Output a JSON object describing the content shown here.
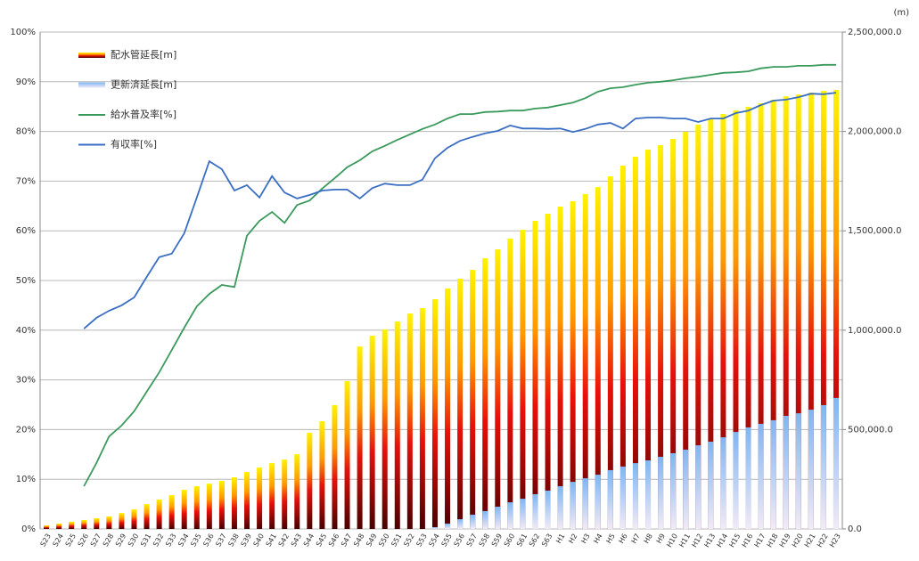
{
  "chart_data": {
    "type": "bar",
    "unit_label": "(m)",
    "categories": [
      "S23",
      "S24",
      "S25",
      "S26",
      "S27",
      "S28",
      "S29",
      "S30",
      "S31",
      "S32",
      "S33",
      "S34",
      "S35",
      "S36",
      "S37",
      "S38",
      "S39",
      "S40",
      "S41",
      "S42",
      "S43",
      "S44",
      "S45",
      "S46",
      "S47",
      "S48",
      "S49",
      "S50",
      "S51",
      "S52",
      "S53",
      "S54",
      "S55",
      "S56",
      "S57",
      "S58",
      "S59",
      "S60",
      "S61",
      "S62",
      "S63",
      "H1",
      "H2",
      "H3",
      "H4",
      "H5",
      "H6",
      "H7",
      "H8",
      "H9",
      "H10",
      "H11",
      "H12",
      "H13",
      "H14",
      "H15",
      "H16",
      "H17",
      "H18",
      "H19",
      "H20",
      "H21",
      "H22",
      "H23"
    ],
    "series": [
      {
        "name": "配水管延長[m]",
        "type": "bar",
        "axis": "y2",
        "color": "#e8200a",
        "values": [
          18000,
          27000,
          36000,
          45000,
          54000,
          63000,
          80000,
          99000,
          125000,
          148000,
          170000,
          197000,
          215000,
          228000,
          242000,
          260000,
          287000,
          309000,
          331000,
          349000,
          376000,
          484000,
          542000,
          623000,
          744000,
          918000,
          972000,
          1004000,
          1044000,
          1084000,
          1111000,
          1156000,
          1210000,
          1259000,
          1304000,
          1362000,
          1407000,
          1461000,
          1505000,
          1550000,
          1586000,
          1622000,
          1649000,
          1685000,
          1720000,
          1774000,
          1828000,
          1873000,
          1909000,
          1931000,
          1962000,
          1998000,
          2034000,
          2061000,
          2088000,
          2106000,
          2124000,
          2142000,
          2159000,
          2177000,
          2186000,
          2195000,
          2204000,
          2209000
        ]
      },
      {
        "name": "更新済延長[m]",
        "type": "bar",
        "axis": "y2",
        "color": "#8ec0f4",
        "values": [
          null,
          null,
          null,
          null,
          null,
          null,
          null,
          null,
          null,
          null,
          null,
          null,
          null,
          null,
          null,
          null,
          null,
          null,
          null,
          null,
          null,
          null,
          null,
          null,
          null,
          null,
          null,
          null,
          null,
          null,
          null,
          9000,
          27000,
          49000,
          72000,
          90000,
          112000,
          134000,
          152000,
          175000,
          193000,
          215000,
          237000,
          255000,
          273000,
          296000,
          314000,
          331000,
          345000,
          363000,
          381000,
          399000,
          421000,
          439000,
          461000,
          488000,
          511000,
          529000,
          547000,
          569000,
          582000,
          600000,
          623000,
          659000
        ]
      },
      {
        "name": "給水普及率[%]",
        "type": "line",
        "color": "#3a9a5c",
        "values": [
          null,
          null,
          null,
          8.6,
          13.3,
          18.6,
          20.8,
          23.7,
          27.6,
          31.5,
          36,
          40.5,
          44.8,
          47.3,
          49.1,
          48.7,
          59,
          62,
          63.8,
          61.6,
          65.2,
          66.1,
          68.5,
          70.6,
          72.8,
          74.2,
          76,
          77.1,
          78.3,
          79.4,
          80.5,
          81.4,
          82.6,
          83.5,
          83.5,
          83.9,
          84,
          84.2,
          84.2,
          84.6,
          84.8,
          85.3,
          85.8,
          86.7,
          88,
          88.7,
          88.9,
          89.4,
          89.8,
          90,
          90.3,
          90.7,
          91,
          91.4,
          91.8,
          91.9,
          92.1,
          92.7,
          93,
          93,
          93.2,
          93.2,
          93.4,
          93.4
        ]
      },
      {
        "name": "有収率[%]",
        "type": "line",
        "color": "#3a6ec4",
        "values": [
          null,
          null,
          null,
          40.3,
          42.5,
          43.9,
          45,
          46.6,
          50.7,
          54.7,
          55.4,
          59.5,
          66.7,
          74,
          72.4,
          68.1,
          69.2,
          66.7,
          71,
          67.7,
          66.5,
          67.2,
          68.1,
          68.3,
          68.3,
          66.5,
          68.6,
          69.5,
          69.2,
          69.2,
          70.3,
          74.6,
          76.7,
          78.1,
          78.9,
          79.6,
          80.1,
          81.2,
          80.6,
          80.6,
          80.5,
          80.6,
          79.9,
          80.5,
          81.4,
          81.7,
          80.6,
          82.6,
          82.8,
          82.8,
          82.6,
          82.6,
          81.9,
          82.6,
          82.6,
          83.7,
          84.2,
          85.3,
          86.2,
          86.4,
          86.9,
          87.6,
          87.5,
          87.8
        ]
      }
    ],
    "ylim": [
      0,
      100
    ],
    "yticks": [
      {
        "value": 0,
        "label": "0%"
      },
      {
        "value": 10,
        "label": "10%"
      },
      {
        "value": 20,
        "label": "20%"
      },
      {
        "value": 30,
        "label": "30%"
      },
      {
        "value": 40,
        "label": "40%"
      },
      {
        "value": 50,
        "label": "50%"
      },
      {
        "value": 60,
        "label": "60%"
      },
      {
        "value": 70,
        "label": "70%"
      },
      {
        "value": 80,
        "label": "80%"
      },
      {
        "value": 90,
        "label": "90%"
      },
      {
        "value": 100,
        "label": "100%"
      }
    ],
    "y2lim": [
      0,
      2500000
    ],
    "y2ticks": [
      {
        "value": 0,
        "label": "0.0"
      },
      {
        "value": 500000,
        "label": "500,000.0"
      },
      {
        "value": 1000000,
        "label": "1,000,000.0"
      },
      {
        "value": 1500000,
        "label": "1,500,000.0"
      },
      {
        "value": 2000000,
        "label": "2,000,000.0"
      },
      {
        "value": 2500000,
        "label": "2,500,000.0"
      }
    ],
    "grid": true
  }
}
